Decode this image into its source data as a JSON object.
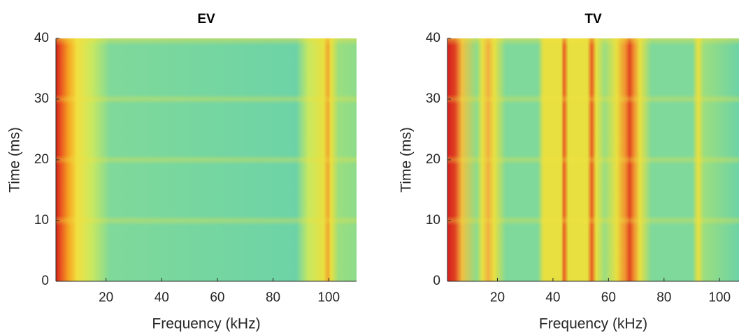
{
  "chart_data": [
    {
      "type": "heatmap",
      "title": "EV",
      "xlabel": "Frequency (kHz)",
      "ylabel": "Time (ms)",
      "xlim": [
        2,
        110
      ],
      "ylim": [
        0,
        40
      ],
      "xticks": [
        20,
        40,
        60,
        80,
        100
      ],
      "yticks": [
        0,
        10,
        20,
        30,
        40
      ]
    },
    {
      "type": "heatmap",
      "title": "TV",
      "xlabel": "Frequency (kHz)",
      "ylabel": "Time (ms)",
      "xlim": [
        2,
        107
      ],
      "ylim": [
        0,
        40
      ],
      "xticks": [
        20,
        40,
        60,
        80,
        100
      ],
      "yticks": [
        0,
        10,
        20,
        30,
        40
      ]
    }
  ]
}
